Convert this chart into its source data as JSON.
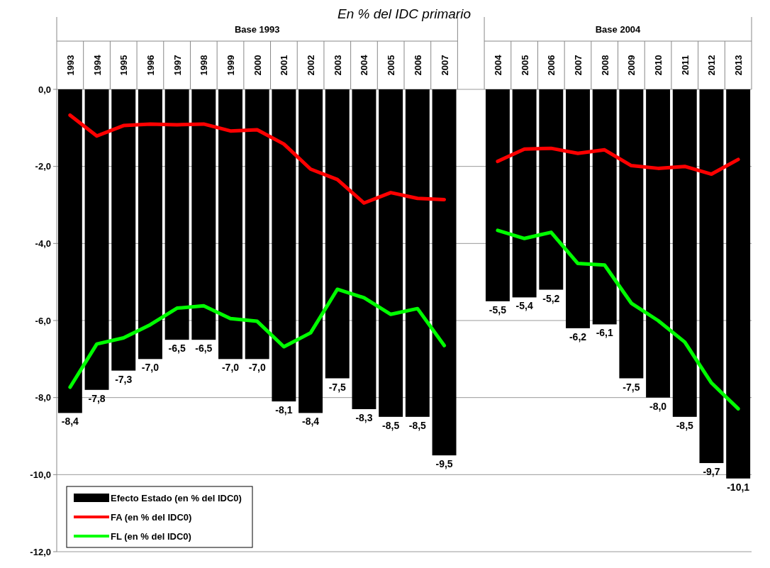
{
  "chart_data": {
    "type": "bar",
    "title": "En % del IDC primario",
    "categories": [
      "1993",
      "1994",
      "1995",
      "1996",
      "1997",
      "1998",
      "1999",
      "2000",
      "2001",
      "2002",
      "2003",
      "2004",
      "2005",
      "2006",
      "2007",
      null,
      "2004",
      "2005",
      "2006",
      "2007",
      "2008",
      "2009",
      "2010",
      "2011",
      "2012",
      "2013"
    ],
    "series": [
      {
        "name": "Efecto Estado (en % del IDC0)",
        "color": "#000000",
        "values": [
          -8.4,
          -7.8,
          -7.3,
          -7.0,
          -6.5,
          -6.5,
          -7.0,
          -7.0,
          -8.1,
          -8.4,
          -7.5,
          -8.3,
          -8.5,
          -8.5,
          -9.5,
          null,
          -5.5,
          -5.4,
          -5.2,
          -6.2,
          -6.1,
          -7.5,
          -8.0,
          -8.5,
          -9.7,
          -10.1
        ],
        "value_labels": [
          "-8,4",
          "-7,8",
          "-7,3",
          "-7,0",
          "-6,5",
          "-6,5",
          "-7,0",
          "-7,0",
          "-8,1",
          "-8,4",
          "-7,5",
          "-8,3",
          "-8,5",
          "-8,5",
          "-9,5",
          null,
          "-5,5",
          "-5,4",
          "-5,2",
          "-6,2",
          "-6,1",
          "-7,5",
          "-8,0",
          "-8,5",
          "-9,7",
          "-10,1"
        ]
      },
      {
        "name": "FA (en % del IDC0)",
        "type": "line",
        "color": "#ff0000",
        "values": [
          -0.67,
          -1.21,
          -0.94,
          -0.9,
          -0.92,
          -0.9,
          -1.08,
          -1.05,
          -1.42,
          -2.07,
          -2.34,
          -2.95,
          -2.68,
          -2.83,
          -2.86,
          null,
          -1.87,
          -1.55,
          -1.53,
          -1.66,
          -1.57,
          -1.98,
          -2.05,
          -2.0,
          -2.2,
          -1.82
        ]
      },
      {
        "name": "FL (en % del IDC0)",
        "type": "line",
        "color": "#00ff00",
        "values": [
          -7.73,
          -6.61,
          -6.45,
          -6.11,
          -5.68,
          -5.62,
          -5.95,
          -6.02,
          -6.68,
          -6.32,
          -5.19,
          -5.41,
          -5.84,
          -5.69,
          -6.65,
          null,
          -3.66,
          -3.87,
          -3.71,
          -4.52,
          -4.56,
          -5.55,
          -6.0,
          -6.56,
          -7.62,
          -8.29
        ]
      }
    ],
    "ylim": [
      -12,
      0
    ],
    "yticks": [
      {
        "value": 0,
        "label": "0,0"
      },
      {
        "value": -2,
        "label": "-2,0"
      },
      {
        "value": -4,
        "label": "-4,0"
      },
      {
        "value": -6,
        "label": "-6,0"
      },
      {
        "value": -8,
        "label": "-8,0"
      },
      {
        "value": -10,
        "label": "-10,0"
      },
      {
        "value": -12,
        "label": "-12,0"
      }
    ],
    "annotations": [
      "Base 1993",
      "Base 2004"
    ],
    "grid": "y",
    "legend": "bottom left",
    "marker": "none",
    "line_style": "solid"
  }
}
